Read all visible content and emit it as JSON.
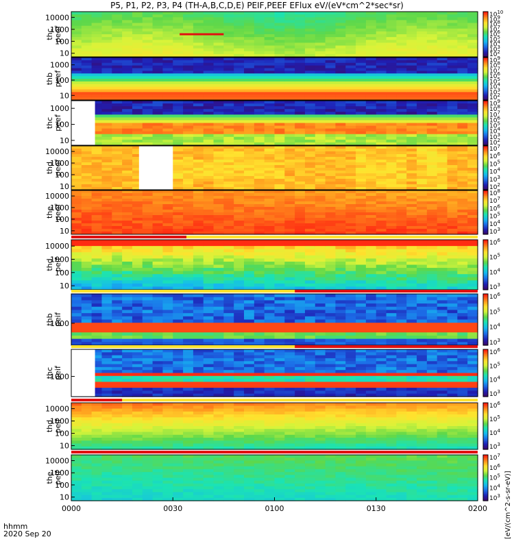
{
  "title": "P5, P1, P2, P3, P4 (TH-A,B,C,D,E) PEIF,PEEF EFlux eV/(eV*cm^2*sec*sr)",
  "colorbar_label": "[eV/(cm^2-s-sr-eV)]",
  "xaxis": {
    "ticks": [
      "0000",
      "0030",
      "0100",
      "0130",
      "0200"
    ],
    "unit_label": "hhmm",
    "date_label": "2020 Sep 20"
  },
  "chart_data": [
    {
      "type": "heatmap",
      "ylabel": [
        "thc",
        "peef"
      ],
      "yticks": [
        "10",
        "100",
        "1000",
        "10000"
      ],
      "cbticks": [
        "10^10",
        "10^9",
        "10^8",
        "10^7",
        "10^6",
        "10^5",
        "10^4",
        "10^3",
        "10^2"
      ],
      "ylim": [
        5,
        30000
      ],
      "top_band": "none",
      "gap": [
        32,
        45
      ],
      "gap_row": 8
    },
    {
      "type": "heatmap",
      "ylabel": [
        "thb",
        "peef"
      ],
      "yticks": [
        "10",
        "100",
        "1000"
      ],
      "cbticks": [
        "10^9",
        "10^8",
        "10^7",
        "10^6",
        "10^5",
        "10^4",
        "10^3",
        "10^2"
      ],
      "ylim": [
        5,
        3000
      ],
      "top_band": "none"
    },
    {
      "type": "heatmap",
      "ylabel": [
        "thc",
        "peef"
      ],
      "yticks": [
        "10",
        "100",
        "1000"
      ],
      "cbticks": [
        "10^9",
        "10^8",
        "10^7",
        "10^6",
        "10^5",
        "10^4",
        "10^3",
        "10^2"
      ],
      "ylim": [
        5,
        3000
      ],
      "top_band": "none",
      "nodata": [
        0,
        7
      ]
    },
    {
      "type": "heatmap",
      "ylabel": [
        "thd",
        "peef"
      ],
      "yticks": [
        "10",
        "100",
        "1000",
        "10000"
      ],
      "cbticks": [
        "10^7",
        "10^6",
        "10^5",
        "10^4",
        "10^3",
        "10^2"
      ],
      "ylim": [
        5,
        30000
      ],
      "top_band": "none",
      "nodata": [
        20,
        30
      ]
    },
    {
      "type": "heatmap",
      "ylabel": [
        "the",
        "peef"
      ],
      "yticks": [
        "10",
        "100",
        "1000",
        "10000"
      ],
      "cbticks": [
        "10^8",
        "10^7",
        "10^6",
        "10^5",
        "10^4",
        "10^3"
      ],
      "ylim": [
        5,
        30000
      ],
      "top_band": "none"
    },
    {
      "type": "heatmap",
      "ylabel": [
        "thd",
        "peif"
      ],
      "yticks": [
        "10",
        "100",
        "1000",
        "10000"
      ],
      "cbticks": [
        "10^6",
        "10^5",
        "10^4",
        "10^3"
      ],
      "ylim": [
        5,
        30000
      ],
      "top_band": "red",
      "red_until": 34
    },
    {
      "type": "heatmap",
      "ylabel": [
        "thb",
        "peif"
      ],
      "yticks": [
        "1000"
      ],
      "cbticks": [
        "10^6",
        "10^5",
        "10^4",
        "10^3"
      ],
      "ylim": [
        300,
        5000
      ],
      "top_band": "yellow-red",
      "red_from": 66
    },
    {
      "type": "heatmap",
      "ylabel": [
        "thc",
        "peif"
      ],
      "yticks": [
        "1000"
      ],
      "cbticks": [
        "10^6",
        "10^5",
        "10^4",
        "10^3"
      ],
      "ylim": [
        300,
        5000
      ],
      "top_band": "yellow-red",
      "red_from": 66,
      "nodata": [
        0,
        7
      ]
    },
    {
      "type": "heatmap",
      "ylabel": [
        "thd",
        "peif"
      ],
      "yticks": [
        "10",
        "100",
        "1000",
        "10000"
      ],
      "cbticks": [
        "10^6",
        "10^5",
        "10^4",
        "10^3"
      ],
      "ylim": [
        5,
        30000
      ],
      "top_band": "red",
      "red_until": 15
    },
    {
      "type": "heatmap",
      "ylabel": [
        "the",
        "peif"
      ],
      "yticks": [
        "10",
        "100",
        "1000",
        "10000"
      ],
      "cbticks": [
        "10^7",
        "10^6",
        "10^5",
        "10^4",
        "10^3"
      ],
      "ylim": [
        5,
        30000
      ],
      "top_band": "red-full"
    }
  ]
}
